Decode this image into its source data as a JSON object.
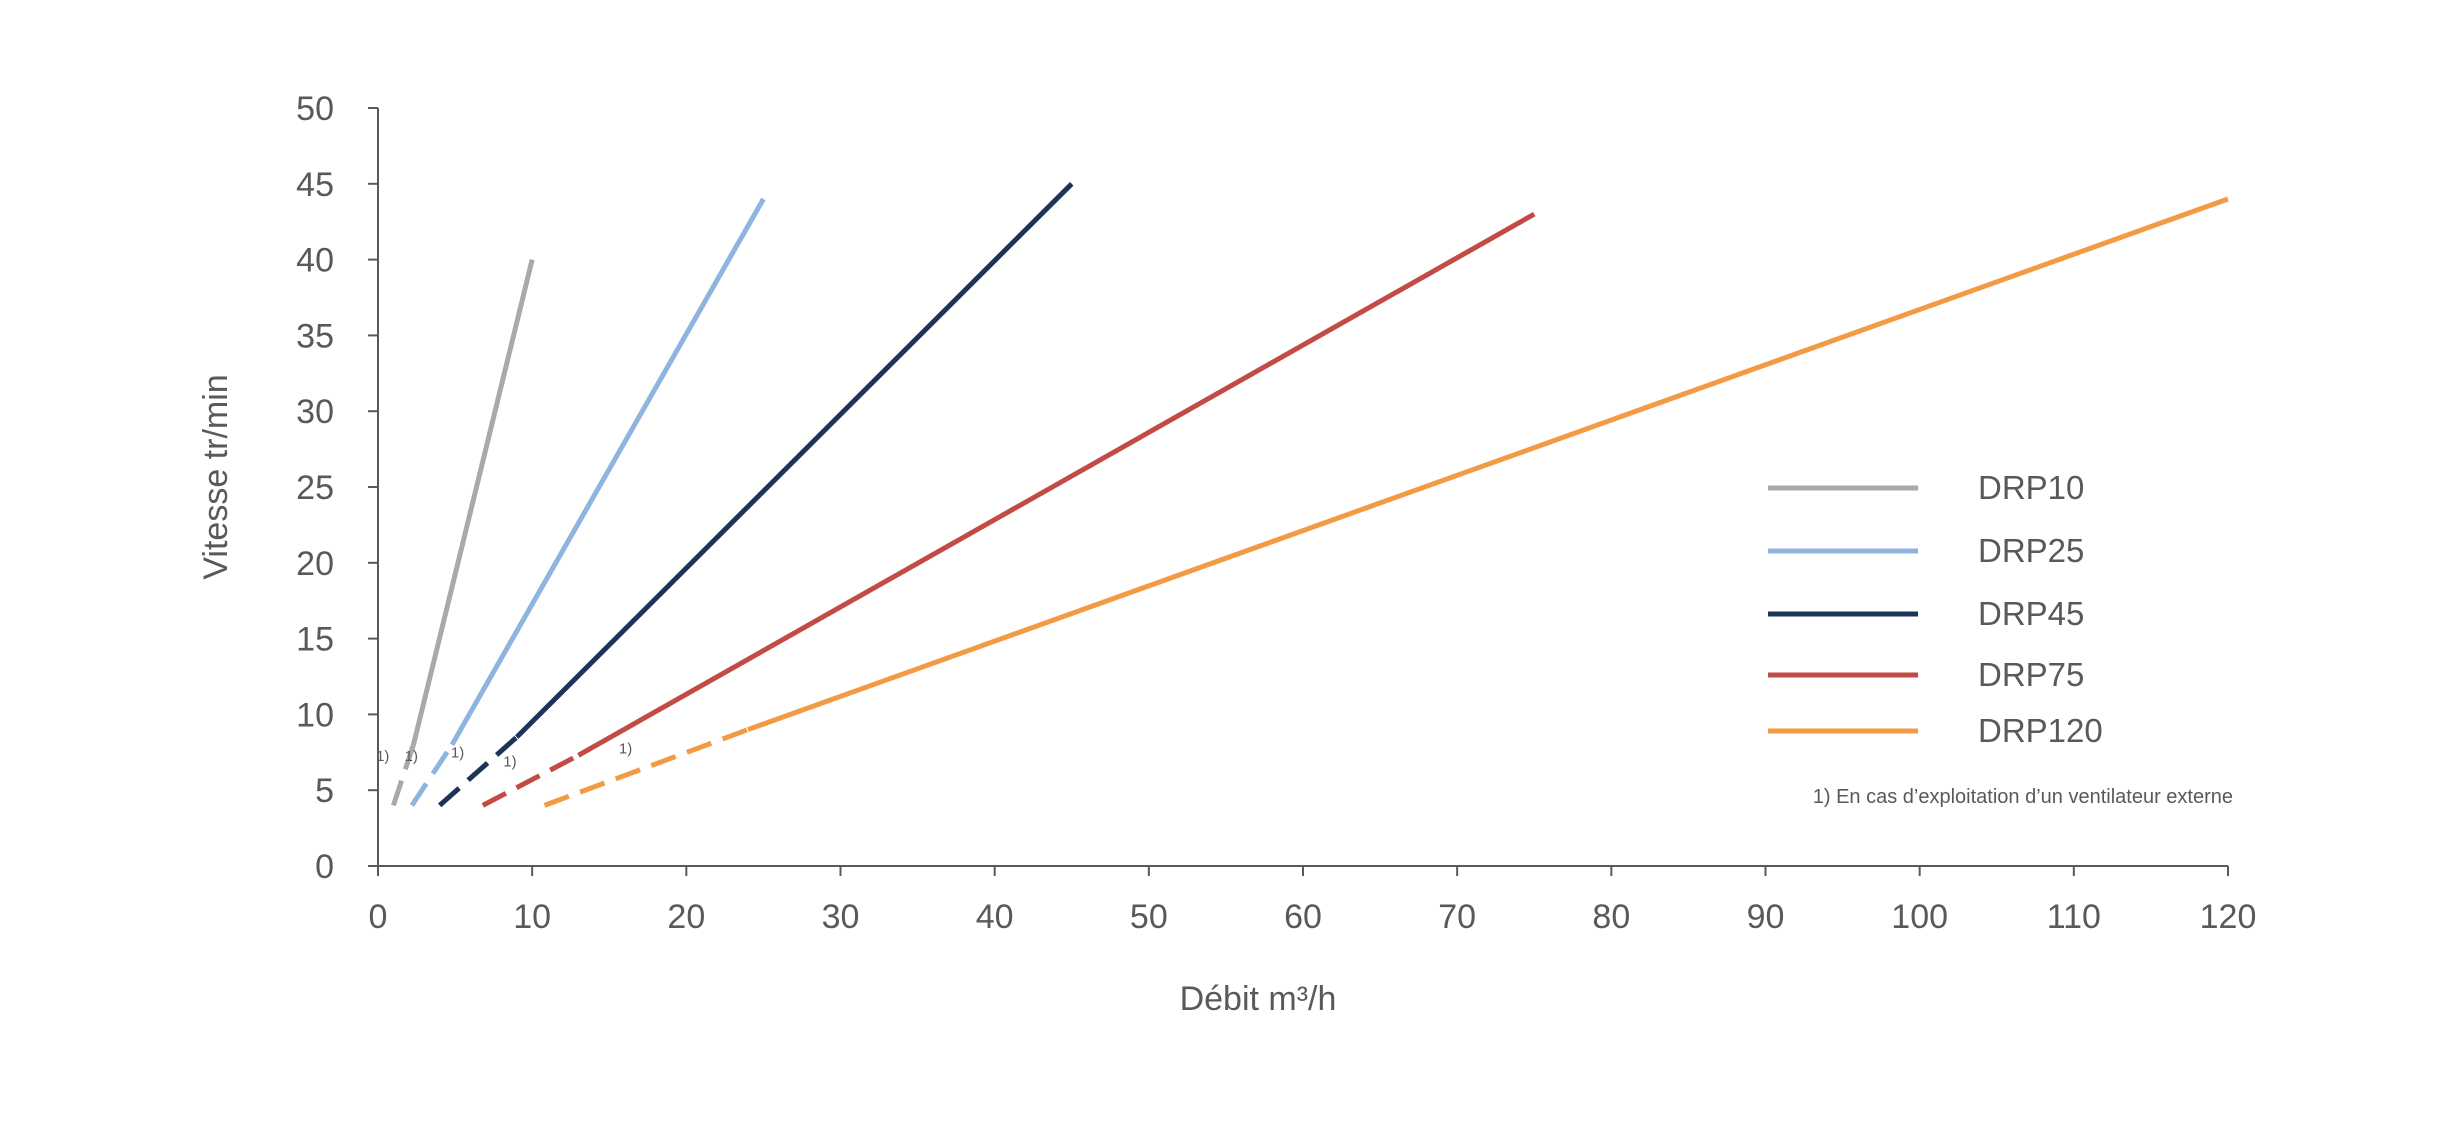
{
  "chart_data": {
    "type": "line",
    "xlabel": "Débit m³/h",
    "ylabel": "Vitesse tr/min",
    "xlim": [
      0,
      120
    ],
    "ylim": [
      0,
      50
    ],
    "xticks": [
      0,
      10,
      20,
      30,
      40,
      50,
      60,
      70,
      80,
      90,
      100,
      110,
      120
    ],
    "yticks": [
      0,
      5,
      10,
      15,
      20,
      25,
      30,
      35,
      40,
      45,
      50
    ],
    "grid": false,
    "legend_position": "right",
    "series": [
      {
        "name": "DRP10",
        "color": "#a7a9ac",
        "dashed_segment": [
          [
            1,
            4
          ],
          [
            2.3,
            8
          ]
        ],
        "solid_segment": [
          [
            2.3,
            8
          ],
          [
            10,
            40
          ]
        ],
        "note_label": "1)"
      },
      {
        "name": "DRP25",
        "color": "#8fb4e0",
        "dashed_segment": [
          [
            2.2,
            4
          ],
          [
            4.8,
            8
          ]
        ],
        "solid_segment": [
          [
            4.8,
            8
          ],
          [
            25,
            44
          ]
        ],
        "note_label": "1)"
      },
      {
        "name": "DRP45",
        "color": "#1c3557",
        "dashed_segment": [
          [
            4,
            4
          ],
          [
            9,
            8.5
          ]
        ],
        "solid_segment": [
          [
            9,
            8.5
          ],
          [
            45,
            45
          ]
        ],
        "note_label": "1)"
      },
      {
        "name": "DRP75",
        "color": "#c24b45",
        "dashed_segment": [
          [
            6.8,
            4
          ],
          [
            13,
            7.3
          ]
        ],
        "solid_segment": [
          [
            13,
            7.3
          ],
          [
            75,
            43
          ]
        ],
        "note_label": "1)"
      },
      {
        "name": "DRP120",
        "color": "#f39a45",
        "dashed_segment": [
          [
            10.8,
            4
          ],
          [
            24,
            9
          ]
        ],
        "solid_segment": [
          [
            24,
            9
          ],
          [
            120,
            44
          ]
        ],
        "note_label": "1)"
      }
    ],
    "footnote": "1) En cas d’exploitation d’un ventilateur externe"
  }
}
